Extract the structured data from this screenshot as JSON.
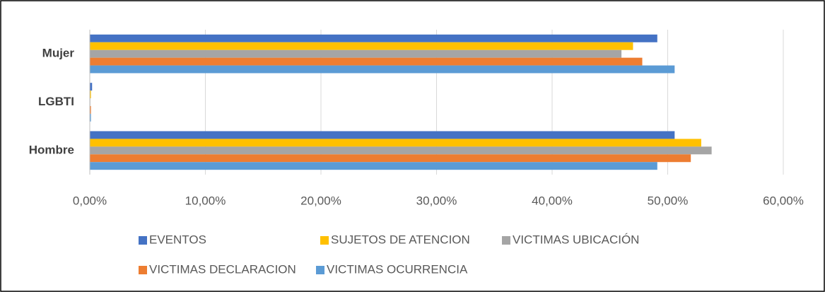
{
  "chart_data": {
    "type": "bar",
    "orientation": "horizontal",
    "categories": [
      "Mujer",
      "LGBTI",
      "Hombre"
    ],
    "series": [
      {
        "name": "EVENTOS",
        "color": "#4472c4",
        "values": [
          49.1,
          0.2,
          50.6
        ]
      },
      {
        "name": "SUJETOS DE ATENCION",
        "color": "#ffc000",
        "values": [
          47.0,
          0.1,
          52.9
        ]
      },
      {
        "name": "VICTIMAS UBICACIÓN",
        "color": "#a5a5a5",
        "values": [
          46.0,
          0.05,
          53.8
        ]
      },
      {
        "name": "VICTIMAS DECLARACION",
        "color": "#ed7d31",
        "values": [
          47.8,
          0.1,
          52.0
        ]
      },
      {
        "name": "VICTIMAS OCURRENCIA",
        "color": "#5b9bd5",
        "values": [
          50.6,
          0.1,
          49.1
        ]
      }
    ],
    "xlim": [
      0,
      60
    ],
    "xticks": [
      {
        "value": 0,
        "label": "0,00%"
      },
      {
        "value": 10,
        "label": "10,00%"
      },
      {
        "value": 20,
        "label": "20,00%"
      },
      {
        "value": 30,
        "label": "30,00%"
      },
      {
        "value": 40,
        "label": "40,00%"
      },
      {
        "value": 50,
        "label": "50,00%"
      },
      {
        "value": 60,
        "label": "60,00%"
      }
    ],
    "grid": true,
    "legend": "bottom"
  }
}
